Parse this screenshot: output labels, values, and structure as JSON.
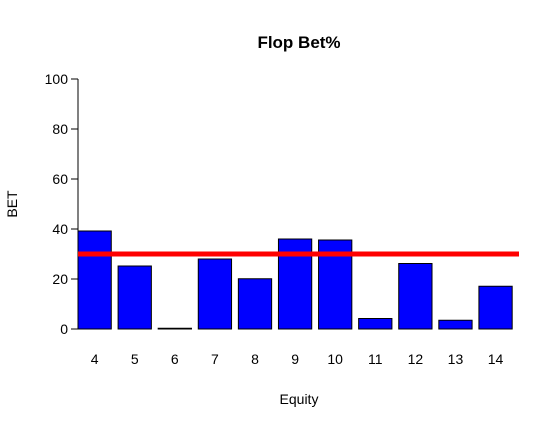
{
  "chart_data": {
    "type": "bar",
    "title": "Flop Bet%",
    "xlabel": "Equity",
    "ylabel": "BET",
    "categories": [
      "4",
      "5",
      "6",
      "7",
      "8",
      "9",
      "10",
      "11",
      "12",
      "13",
      "14"
    ],
    "values": [
      39.2,
      25.2,
      0.3,
      28.0,
      20.1,
      36.0,
      35.6,
      4.2,
      26.2,
      3.5,
      17.1
    ],
    "ylim": [
      0,
      100
    ],
    "yticks": [
      0,
      20,
      40,
      60,
      80,
      100
    ],
    "reference_line": {
      "value": 30,
      "color": "#ff0000"
    },
    "bar_color": "#0000ff",
    "grid": false,
    "legend": "none"
  }
}
